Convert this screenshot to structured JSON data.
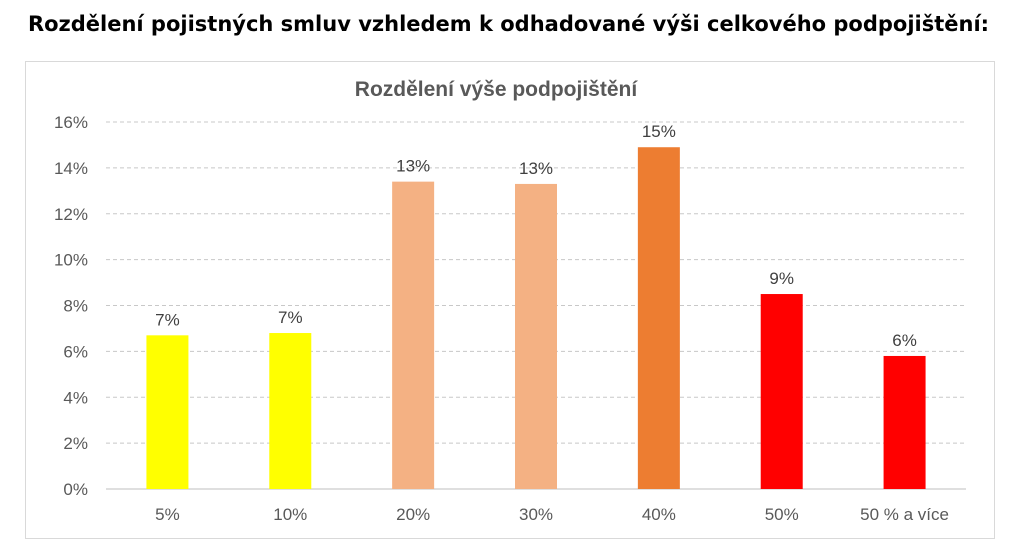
{
  "page": {
    "title": "Rozdělení pojistných smluv vzhledem k odhadované výši celkového podpojištění:"
  },
  "chart_data": {
    "type": "bar",
    "title": "Rozdělení výše podpojištění",
    "categories": [
      "5%",
      "10%",
      "20%",
      "30%",
      "40%",
      "50%",
      "50 % a více"
    ],
    "values": [
      6.7,
      6.8,
      13.4,
      13.3,
      14.9,
      8.5,
      5.8
    ],
    "data_labels": [
      "7%",
      "7%",
      "13%",
      "13%",
      "15%",
      "9%",
      "6%"
    ],
    "bar_colors": [
      "#ffff00",
      "#ffff00",
      "#f4b183",
      "#f4b183",
      "#ed7d31",
      "#ff0000",
      "#ff0000"
    ],
    "ylim": [
      0,
      16
    ],
    "yticks": [
      0,
      2,
      4,
      6,
      8,
      10,
      12,
      14,
      16
    ],
    "ytick_labels": [
      "0%",
      "2%",
      "4%",
      "6%",
      "8%",
      "10%",
      "12%",
      "14%",
      "16%"
    ],
    "xlabel": "",
    "ylabel": "",
    "grid": true,
    "legend": "none"
  }
}
